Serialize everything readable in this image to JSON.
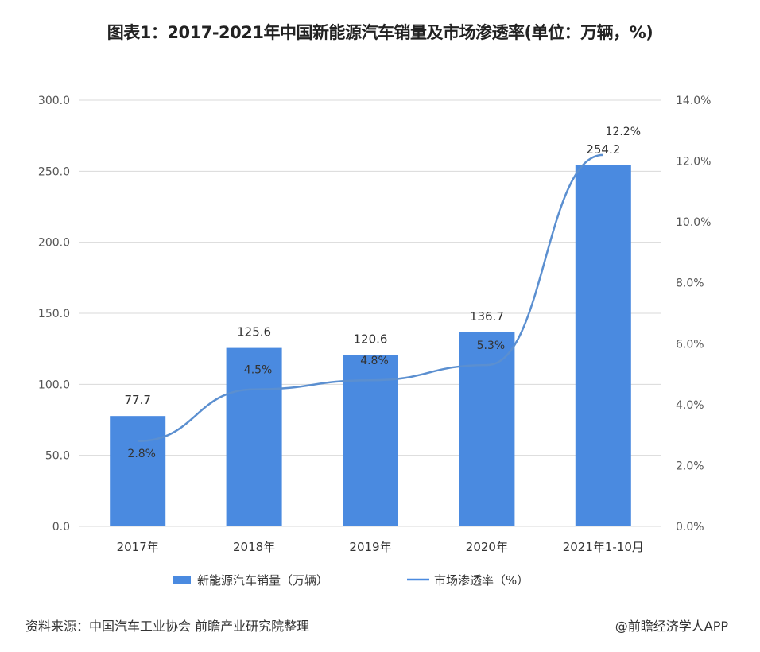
{
  "title": "图表1：2017-2021年中国新能源汽车销量及市场渗透率(单位：万辆，%)",
  "chart_data": {
    "type": "bar+line",
    "title": "图表1：2017-2021年中国新能源汽车销量及市场渗透率(单位：万辆，%)",
    "categories": [
      "2017年",
      "2018年",
      "2019年",
      "2020年",
      "2021年1-10月"
    ],
    "series": [
      {
        "name": "新能源汽车销量（万辆）",
        "type": "bar",
        "axis": "left",
        "values": [
          77.7,
          125.6,
          120.6,
          136.7,
          254.2
        ],
        "labels": [
          "77.7",
          "125.6",
          "120.6",
          "136.7",
          "254.2"
        ],
        "color": "#4a8ae0"
      },
      {
        "name": "市场渗透率（%）",
        "type": "line",
        "axis": "right",
        "values": [
          2.8,
          4.5,
          4.8,
          5.3,
          12.2
        ],
        "labels": [
          "2.8%",
          "4.5%",
          "4.8%",
          "5.3%",
          "12.2%"
        ],
        "color": "#4a8ae0"
      }
    ],
    "y_left": {
      "range": [
        0,
        300
      ],
      "ticks": [
        "0.0",
        "50.0",
        "100.0",
        "150.0",
        "200.0",
        "250.0",
        "300.0"
      ]
    },
    "y_right": {
      "range": [
        0,
        14
      ],
      "ticks": [
        "0.0%",
        "2.0%",
        "4.0%",
        "6.0%",
        "8.0%",
        "10.0%",
        "12.0%",
        "14.0%"
      ]
    },
    "grid": true,
    "legend_position": "bottom"
  },
  "footer": {
    "source": "资料来源：中国汽车工业协会 前瞻产业研究院整理",
    "credit": "@前瞻经济学人APP"
  }
}
